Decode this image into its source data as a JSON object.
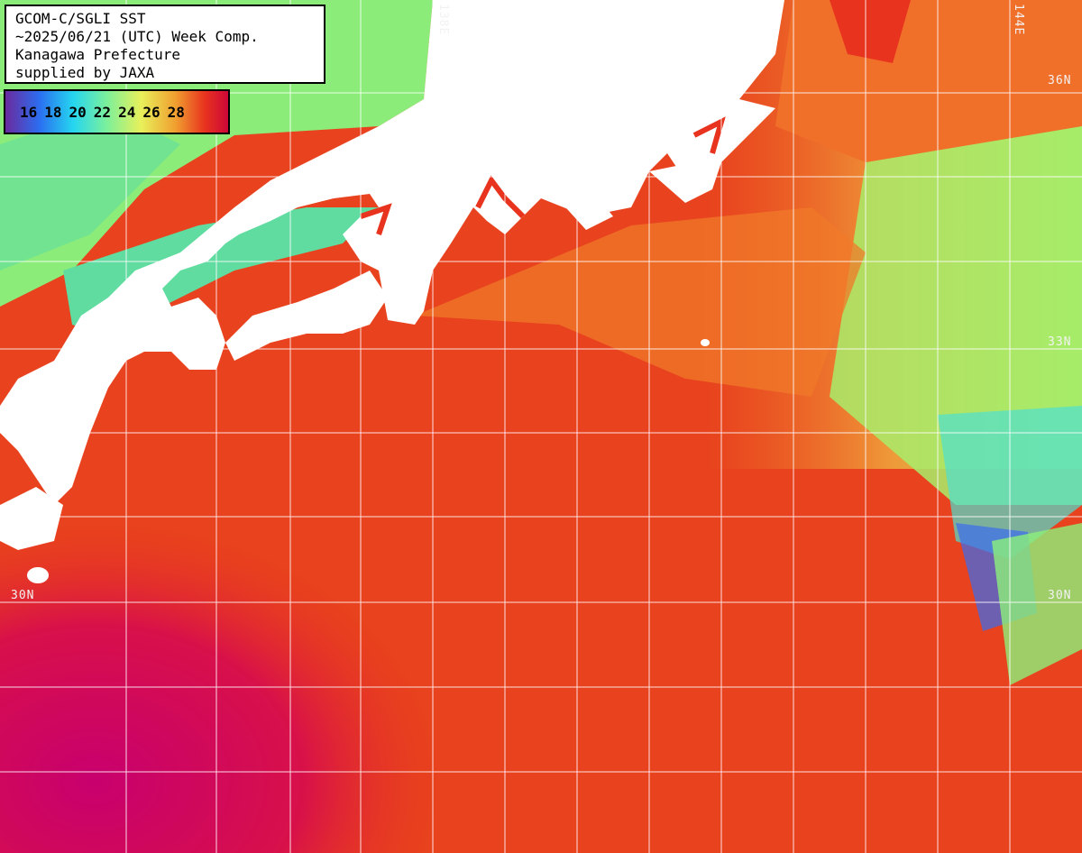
{
  "title": {
    "line1": "GCOM-C/SGLI SST",
    "line2": "~2025/06/21 (UTC) Week Comp.",
    "line3": "Kanagawa Prefecture",
    "line4": "supplied by JAXA"
  },
  "legend": {
    "labels": [
      "16",
      "18",
      "20",
      "22",
      "24",
      "26",
      "28"
    ],
    "colors": [
      "#6a2a9e",
      "#2b6ef0",
      "#25d6f0",
      "#7df09a",
      "#e8f05a",
      "#f0a030",
      "#e8341e",
      "#c8003c"
    ]
  },
  "grid_labels": {
    "lat_36n": "36N",
    "lat_33n": "33N",
    "lat_30n_left": "30N",
    "lat_30n_right": "30N",
    "lon_138e": "138E",
    "lon_144e": "144E"
  },
  "colors": {
    "land": "#ffffff",
    "warm_water": "#e8341e",
    "hot_water": "#c8006e",
    "cool_water": "#8ef07a",
    "grid": "#ffffff"
  }
}
